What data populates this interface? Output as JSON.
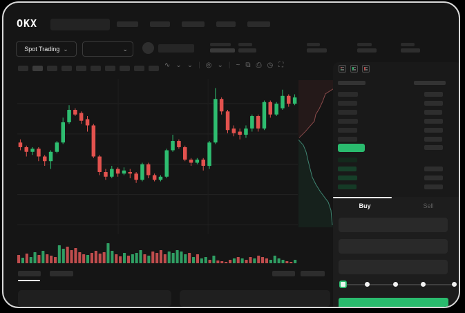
{
  "header": {
    "logo": "OKX"
  },
  "market_bar": {
    "market_type": {
      "label": "Spot Trading"
    }
  },
  "glyphs": {
    "chevron": "⌄",
    "chart_style": "∿",
    "indicator": "◎",
    "wave_tool": "~",
    "brush": "⧉",
    "camera": "⎙",
    "clock": "◷",
    "fullscreen": "⛶",
    "separator": "|"
  },
  "colors": {
    "green": "#2ebd70",
    "red": "#e2524e",
    "vol_green": "#2f9e63",
    "vol_red": "#bf4d4d",
    "depth_ask_line": "#8a4a4a",
    "depth_bid_line": "#3f8572",
    "mid_price_bar": "#2abb6e",
    "buy_button": "#2abb6e"
  },
  "chart_data": {
    "type": "candlestick",
    "ylim": [
      0,
      100
    ],
    "h_gridlines": [
      84,
      64.5,
      45,
      25.5,
      6
    ],
    "v_gridlines": [
      0.36,
      0.68
    ],
    "candles": [
      [
        59,
        61,
        54,
        56
      ],
      [
        56,
        57,
        50,
        53
      ],
      [
        53,
        56,
        51,
        55
      ],
      [
        55,
        56,
        47,
        50
      ],
      [
        50,
        51,
        44,
        47
      ],
      [
        47,
        54,
        42,
        53
      ],
      [
        53,
        60,
        52,
        59
      ],
      [
        59,
        75,
        58,
        72
      ],
      [
        72,
        83,
        71,
        80
      ],
      [
        80,
        81,
        76,
        77
      ],
      [
        78,
        79,
        71,
        73
      ],
      [
        74,
        76,
        66,
        70
      ],
      [
        70,
        71,
        49,
        50
      ],
      [
        50,
        51,
        38,
        40
      ],
      [
        40,
        42,
        35,
        37
      ],
      [
        37,
        44,
        36,
        42
      ],
      [
        42,
        43,
        37,
        39
      ],
      [
        39,
        43,
        38,
        41
      ],
      [
        40,
        42,
        36,
        39
      ],
      [
        39,
        40,
        33,
        35
      ],
      [
        35,
        46,
        34,
        45
      ],
      [
        45,
        46,
        36,
        38
      ],
      [
        38,
        39,
        34,
        35
      ],
      [
        35,
        38,
        34,
        37
      ],
      [
        37,
        55,
        36,
        54
      ],
      [
        54,
        64,
        53,
        60
      ],
      [
        60,
        61,
        55,
        56
      ],
      [
        56,
        57,
        47,
        48
      ],
      [
        48,
        49,
        44,
        46
      ],
      [
        46,
        49,
        45,
        48
      ],
      [
        48,
        49,
        41,
        44
      ],
      [
        44,
        60,
        42,
        59
      ],
      [
        59,
        94,
        58,
        87
      ],
      [
        87,
        88,
        77,
        79
      ],
      [
        79,
        80,
        65,
        67
      ],
      [
        68,
        70,
        63,
        65
      ],
      [
        66,
        68,
        61,
        64
      ],
      [
        64,
        70,
        62,
        68
      ],
      [
        68,
        77,
        66,
        76
      ],
      [
        76,
        77,
        66,
        68
      ],
      [
        68,
        86,
        67,
        85
      ],
      [
        85,
        86,
        75,
        77
      ],
      [
        77,
        85,
        76,
        84
      ],
      [
        81,
        93,
        80,
        89
      ],
      [
        89,
        90,
        82,
        84
      ],
      [
        84,
        90,
        83,
        88
      ]
    ],
    "volumes": [
      [
        12,
        "r"
      ],
      [
        8,
        "g"
      ],
      [
        14,
        "r"
      ],
      [
        9,
        "g"
      ],
      [
        16,
        "g"
      ],
      [
        12,
        "r"
      ],
      [
        18,
        "g"
      ],
      [
        13,
        "r"
      ],
      [
        11,
        "r"
      ],
      [
        9,
        "r"
      ],
      [
        26,
        "g"
      ],
      [
        21,
        "g"
      ],
      [
        24,
        "r"
      ],
      [
        19,
        "r"
      ],
      [
        22,
        "r"
      ],
      [
        16,
        "r"
      ],
      [
        13,
        "r"
      ],
      [
        12,
        "g"
      ],
      [
        15,
        "r"
      ],
      [
        18,
        "r"
      ],
      [
        14,
        "r"
      ],
      [
        16,
        "r"
      ],
      [
        29,
        "g"
      ],
      [
        18,
        "g"
      ],
      [
        13,
        "r"
      ],
      [
        10,
        "r"
      ],
      [
        15,
        "g"
      ],
      [
        11,
        "r"
      ],
      [
        13,
        "g"
      ],
      [
        15,
        "g"
      ],
      [
        19,
        "g"
      ],
      [
        13,
        "r"
      ],
      [
        11,
        "g"
      ],
      [
        17,
        "r"
      ],
      [
        15,
        "r"
      ],
      [
        19,
        "r"
      ],
      [
        13,
        "r"
      ],
      [
        17,
        "g"
      ],
      [
        15,
        "g"
      ],
      [
        19,
        "g"
      ],
      [
        17,
        "g"
      ],
      [
        13,
        "g"
      ],
      [
        15,
        "r"
      ],
      [
        9,
        "g"
      ],
      [
        13,
        "r"
      ],
      [
        7,
        "g"
      ],
      [
        9,
        "g"
      ],
      [
        5,
        "r"
      ],
      [
        11,
        "g"
      ],
      [
        4,
        "r"
      ],
      [
        3,
        "r"
      ],
      [
        2,
        "r"
      ],
      [
        5,
        "r"
      ],
      [
        7,
        "g"
      ],
      [
        9,
        "r"
      ],
      [
        7,
        "g"
      ],
      [
        5,
        "r"
      ],
      [
        9,
        "r"
      ],
      [
        7,
        "g"
      ],
      [
        11,
        "r"
      ],
      [
        9,
        "r"
      ],
      [
        7,
        "r"
      ],
      [
        5,
        "g"
      ],
      [
        11,
        "g"
      ],
      [
        7,
        "g"
      ],
      [
        5,
        "g"
      ],
      [
        3,
        "r"
      ],
      [
        2,
        "r"
      ],
      [
        5,
        "g"
      ]
    ],
    "depth": {
      "ask_line": [
        [
          100,
          6
        ],
        [
          78,
          9.3
        ],
        [
          70,
          14.4
        ],
        [
          60,
          19.5
        ],
        [
          50,
          23.3
        ],
        [
          46,
          27.9
        ],
        [
          32,
          31.6
        ],
        [
          20,
          34.9
        ],
        [
          2,
          39.1
        ]
      ],
      "bid_line": [
        [
          0,
          40.5
        ],
        [
          14,
          44.2
        ],
        [
          22,
          48.8
        ],
        [
          28,
          54.9
        ],
        [
          34,
          60.5
        ],
        [
          40,
          66
        ],
        [
          50,
          70.7
        ],
        [
          62,
          75.3
        ],
        [
          74,
          79.1
        ],
        [
          86,
          82.8
        ],
        [
          94,
          88.4
        ],
        [
          98,
          98.6
        ]
      ]
    }
  },
  "order_book": {
    "ask_rows": [
      {
        "l": 29,
        "r": 27
      },
      {
        "l": 28,
        "r": 27
      },
      {
        "l": 28,
        "r": 26
      },
      {
        "l": 29,
        "r": 27
      },
      {
        "l": 28,
        "r": 27
      },
      {
        "l": 28,
        "r": 26
      }
    ],
    "bid_rows": [
      {
        "l": 28,
        "r": 0,
        "c": "#13291c"
      },
      {
        "l": 27,
        "r": 27,
        "c": "#17402a"
      },
      {
        "l": 28,
        "r": 27,
        "c": "#163f29"
      },
      {
        "l": 27,
        "r": 27,
        "c": "#153a26"
      }
    ]
  },
  "side_panel": {
    "tabs": {
      "buy": "Buy",
      "sell": "Sell"
    },
    "slider_stops": 5
  }
}
